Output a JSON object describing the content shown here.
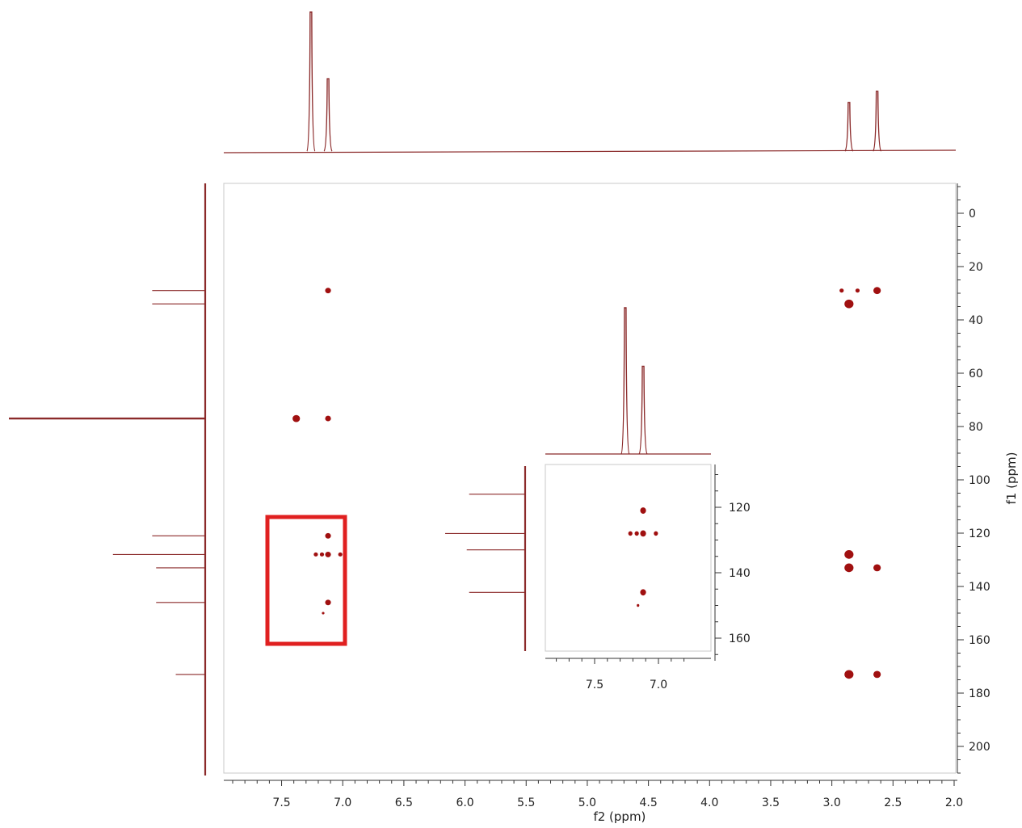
{
  "colors": {
    "spectrum": "#8b2a2a",
    "peak": "#a01010",
    "highlight": "#e02020",
    "axis": "#333333",
    "frame": "#c8c8c8"
  },
  "chart_data": [
    {
      "type": "scatter",
      "subtype": "2D NMR HMBC map",
      "xlabel": "f2 (ppm)",
      "ylabel": "f1 (ppm)",
      "xlim": [
        7.9,
        2.0
      ],
      "ylim": [
        -10,
        210
      ],
      "x_reversed": true,
      "x_ticks": [
        "7.5",
        "7.0",
        "6.5",
        "6.0",
        "5.5",
        "5.0",
        "4.5",
        "4.0",
        "3.5",
        "3.0",
        "2.5",
        "2.0"
      ],
      "y_ticks": [
        "0",
        "20",
        "40",
        "60",
        "80",
        "100",
        "120",
        "140",
        "160",
        "180",
        "200"
      ],
      "cross_peaks": [
        {
          "x": 7.12,
          "y": 29,
          "size": 3
        },
        {
          "x": 2.92,
          "y": 29,
          "size": 2
        },
        {
          "x": 2.79,
          "y": 29,
          "size": 2
        },
        {
          "x": 2.63,
          "y": 29,
          "size": 4
        },
        {
          "x": 2.86,
          "y": 34,
          "size": 5
        },
        {
          "x": 7.38,
          "y": 77,
          "size": 4
        },
        {
          "x": 7.12,
          "y": 77,
          "size": 3
        },
        {
          "x": 7.12,
          "y": 121,
          "size": 3
        },
        {
          "x": 7.22,
          "y": 128,
          "size": 2
        },
        {
          "x": 7.17,
          "y": 128,
          "size": 2
        },
        {
          "x": 7.12,
          "y": 128,
          "size": 3
        },
        {
          "x": 7.02,
          "y": 128,
          "size": 2
        },
        {
          "x": 7.12,
          "y": 146,
          "size": 3
        },
        {
          "x": 7.16,
          "y": 150,
          "size": 1
        },
        {
          "x": 2.86,
          "y": 128,
          "size": 5
        },
        {
          "x": 2.86,
          "y": 133,
          "size": 5
        },
        {
          "x": 2.63,
          "y": 133,
          "size": 4
        },
        {
          "x": 2.86,
          "y": 173,
          "size": 5
        },
        {
          "x": 2.63,
          "y": 173,
          "size": 4
        }
      ],
      "f2_projection_peaks": [
        {
          "ppm": 7.26,
          "height": 1.0
        },
        {
          "ppm": 7.12,
          "height": 0.52
        },
        {
          "ppm": 2.86,
          "height": 0.35
        },
        {
          "ppm": 2.63,
          "height": 0.43
        }
      ],
      "f1_projection_peaks": [
        {
          "ppm": 29,
          "height": 0.27
        },
        {
          "ppm": 34,
          "height": 0.27
        },
        {
          "ppm": 77,
          "height": 1.0
        },
        {
          "ppm": 121,
          "height": 0.27
        },
        {
          "ppm": 128,
          "height": 0.47
        },
        {
          "ppm": 133,
          "height": 0.25
        },
        {
          "ppm": 146,
          "height": 0.25
        },
        {
          "ppm": 173,
          "height": 0.15
        }
      ],
      "highlight_box": {
        "x_range": [
          7.45,
          6.82
        ],
        "y_range": [
          114,
          162
        ]
      }
    },
    {
      "type": "scatter",
      "subtype": "inset zoom of aromatic region",
      "xlim": [
        7.85,
        6.75
      ],
      "ylim": [
        107,
        166
      ],
      "x_ticks": [
        "7.5",
        "7.0"
      ],
      "y_ticks": [
        "120",
        "140",
        "160"
      ],
      "cross_peaks": [
        {
          "x": 7.12,
          "y": 121,
          "size": 3
        },
        {
          "x": 7.22,
          "y": 128,
          "size": 2
        },
        {
          "x": 7.17,
          "y": 128,
          "size": 2
        },
        {
          "x": 7.12,
          "y": 128,
          "size": 3
        },
        {
          "x": 7.02,
          "y": 128,
          "size": 2
        },
        {
          "x": 7.12,
          "y": 146,
          "size": 3
        },
        {
          "x": 7.16,
          "y": 150,
          "size": 1
        }
      ],
      "f2_projection_peaks": [
        {
          "ppm": 7.26,
          "height": 1.0
        },
        {
          "ppm": 7.12,
          "height": 0.6
        }
      ],
      "f1_projection_peaks": [
        {
          "ppm": 116,
          "height": 0.7
        },
        {
          "ppm": 128,
          "height": 1.0
        },
        {
          "ppm": 133,
          "height": 0.73
        },
        {
          "ppm": 146,
          "height": 0.7
        }
      ]
    }
  ]
}
